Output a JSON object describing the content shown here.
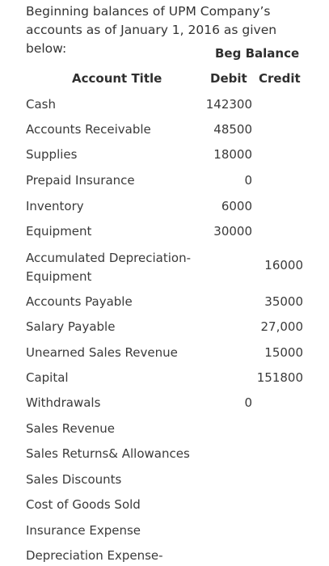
{
  "intro": "Beginning balances of UPM Company’s accounts as of January 1, 2016 as given below:",
  "headers": {
    "group": "Beg Balance",
    "account_title": "Account Title",
    "debit": "Debit",
    "credit": "Credit"
  },
  "rows": [
    {
      "title": "Cash",
      "debit": "142300",
      "credit": ""
    },
    {
      "title": "Accounts Receivable",
      "debit": "48500",
      "credit": ""
    },
    {
      "title": "Supplies",
      "debit": "18000",
      "credit": ""
    },
    {
      "title": "Prepaid Insurance",
      "debit": "0",
      "credit": ""
    },
    {
      "title": "Inventory",
      "debit": "6000",
      "credit": ""
    },
    {
      "title": "Equipment",
      "debit": "30000",
      "credit": ""
    },
    {
      "title": "Accumulated Depreciation-Equipment",
      "debit": "",
      "credit": "16000"
    },
    {
      "title": "Accounts Payable",
      "debit": "",
      "credit": "35000"
    },
    {
      "title": "Salary Payable",
      "debit": "",
      "credit": "27,000"
    },
    {
      "title": "Unearned Sales Revenue",
      "debit": "",
      "credit": "15000"
    },
    {
      "title": "Capital",
      "debit": "",
      "credit": "151800"
    },
    {
      "title": "Withdrawals",
      "debit": "0",
      "credit": ""
    },
    {
      "title": "Sales Revenue",
      "debit": "",
      "credit": ""
    },
    {
      "title": "Sales Returns& Allowances",
      "debit": "",
      "credit": ""
    },
    {
      "title": "Sales Discounts",
      "debit": "",
      "credit": ""
    },
    {
      "title": "Cost of Goods Sold",
      "debit": "",
      "credit": ""
    },
    {
      "title": "Insurance Expense",
      "debit": "",
      "credit": ""
    },
    {
      "title": "Depreciation Expense-",
      "debit": "",
      "credit": ""
    }
  ]
}
